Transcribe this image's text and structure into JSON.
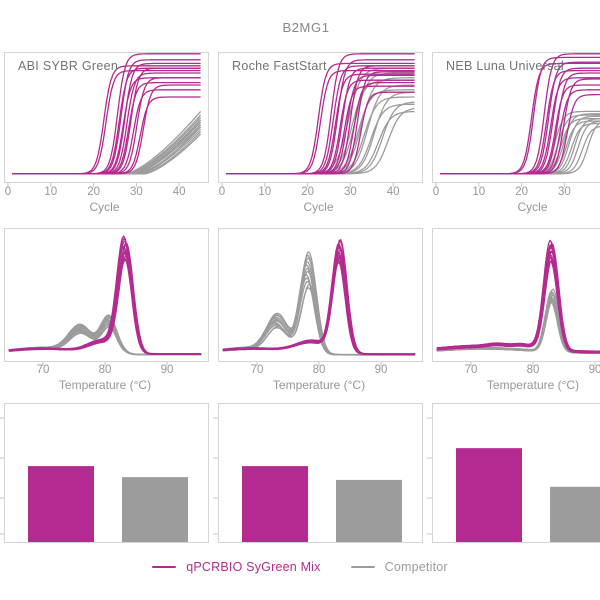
{
  "title": "B2MG1",
  "panel_titles": [
    "ABI SYBR Green",
    "Roche FastStart",
    "NEB Luna Universal"
  ],
  "colors": {
    "sygreen_magenta": "#b32b90",
    "competitor_gray": "#9c9c9c",
    "frame_gray": "#d4d4d4",
    "tick_mark_gray": "#c6c6c6",
    "text_gray": "#979797",
    "title_gray": "#878787"
  },
  "legend": {
    "items": [
      {
        "label": "qPCRBIO SyGreen Mix",
        "color": "#b32b90"
      },
      {
        "label": "Competitor",
        "color": "#9c9c9c"
      }
    ]
  },
  "chart_data": {
    "amplification": {
      "type": "line",
      "xlabel": "Cycle",
      "x_ticks": [
        0,
        10,
        20,
        30,
        40
      ],
      "xlim": [
        1,
        45
      ],
      "ylim": [
        0,
        1
      ],
      "grid": false,
      "panels": [
        {
          "instrument": "ABI SYBR Green",
          "sygreen_sigmoids_ct_plateau": [
            [
              22.4,
              0.9
            ],
            [
              22.9,
              0.86
            ],
            [
              25.6,
              1.0
            ],
            [
              26.0,
              0.88
            ],
            [
              26.4,
              0.95
            ],
            [
              26.9,
              0.8
            ],
            [
              27.3,
              0.92
            ],
            [
              27.8,
              0.84
            ],
            [
              28.2,
              0.76
            ],
            [
              28.7,
              0.88
            ],
            [
              29.3,
              0.7
            ],
            [
              30.1,
              0.8
            ],
            [
              30.9,
              0.64
            ],
            [
              31.6,
              0.74
            ]
          ],
          "competitor_ramps_start_endvalue": [
            [
              27.5,
              0.52
            ],
            [
              28.0,
              0.49
            ],
            [
              28.3,
              0.47
            ],
            [
              28.8,
              0.45
            ],
            [
              29.2,
              0.43
            ],
            [
              29.6,
              0.41
            ],
            [
              30.0,
              0.45
            ],
            [
              30.4,
              0.39
            ],
            [
              30.8,
              0.37
            ],
            [
              31.2,
              0.41
            ],
            [
              31.6,
              0.35
            ],
            [
              32.0,
              0.33
            ]
          ]
        },
        {
          "instrument": "Roche FastStart",
          "sygreen_sigmoids_ct_plateau": [
            [
              22.5,
              0.92
            ],
            [
              23.0,
              0.86
            ],
            [
              25.5,
              1.0
            ],
            [
              26.0,
              0.9
            ],
            [
              26.5,
              0.83
            ],
            [
              27.0,
              0.95
            ],
            [
              27.6,
              0.78
            ],
            [
              28.1,
              0.88
            ],
            [
              28.6,
              0.73
            ],
            [
              29.2,
              0.82
            ],
            [
              30.0,
              0.9
            ],
            [
              30.8,
              0.76
            ],
            [
              31.6,
              0.85
            ],
            [
              32.4,
              0.68
            ]
          ],
          "competitor_sigmoids_ct_plateau": [
            [
              29.5,
              0.88
            ],
            [
              30.3,
              0.78
            ],
            [
              31.0,
              0.84
            ],
            [
              31.8,
              0.7
            ],
            [
              32.5,
              0.8
            ],
            [
              33.2,
              0.64
            ],
            [
              34.0,
              0.74
            ],
            [
              34.8,
              0.58
            ],
            [
              35.6,
              0.68
            ],
            [
              36.5,
              0.52
            ],
            [
              37.5,
              0.6
            ],
            [
              38.8,
              0.55
            ]
          ],
          "competitor_k": 0.7
        },
        {
          "instrument": "NEB Luna Universal",
          "sygreen_sigmoids_ct_plateau": [
            [
              22.3,
              0.92
            ],
            [
              22.8,
              0.97
            ],
            [
              25.3,
              1.0
            ],
            [
              25.8,
              0.86
            ],
            [
              26.3,
              0.93
            ],
            [
              26.8,
              0.8
            ],
            [
              27.3,
              0.88
            ],
            [
              27.9,
              0.74
            ],
            [
              28.4,
              0.84
            ],
            [
              29.0,
              0.7
            ],
            [
              29.8,
              0.79
            ],
            [
              30.6,
              0.66
            ]
          ],
          "competitor_sigmoids_ct_plateau": [
            [
              27.8,
              0.52
            ],
            [
              28.5,
              0.49
            ],
            [
              29.2,
              0.46
            ],
            [
              29.8,
              0.5
            ],
            [
              30.4,
              0.44
            ],
            [
              31.0,
              0.48
            ],
            [
              31.6,
              0.42
            ],
            [
              32.4,
              0.46
            ],
            [
              33.2,
              0.44
            ],
            [
              34.2,
              0.4
            ],
            [
              35.5,
              0.45
            ]
          ],
          "competitor_k": 1.0
        }
      ]
    },
    "melt": {
      "type": "line",
      "xlabel": "Temperature (°C)",
      "x_ticks": [
        70,
        80,
        90
      ],
      "xlim": [
        64.5,
        95.5
      ],
      "ylim": [
        0,
        1
      ],
      "grid": false,
      "panels": [
        {
          "instrument": "ABI SYBR Green",
          "sygreen": {
            "baseline": 0.015,
            "n": 12,
            "spread": 0.2,
            "peaks_mu_sigma_amp": [
              [
                83.2,
                1.15,
                0.92
              ],
              [
                79.6,
                2.2,
                0.1
              ],
              [
                70.0,
                6.0,
                0.05
              ]
            ]
          },
          "competitor": {
            "baseline": 0.01,
            "n": 12,
            "spread": 0.3,
            "peaks_mu_sigma_amp": [
              [
                80.6,
                1.3,
                0.3
              ],
              [
                76.0,
                1.8,
                0.21
              ],
              [
                70.0,
                6.0,
                0.06
              ]
            ]
          }
        },
        {
          "instrument": "Roche FastStart",
          "sygreen": {
            "baseline": 0.015,
            "n": 12,
            "spread": 0.2,
            "peaks_mu_sigma_amp": [
              [
                83.2,
                1.1,
                0.9
              ],
              [
                78.8,
                2.6,
                0.1
              ],
              [
                69.0,
                6.0,
                0.05
              ]
            ]
          },
          "competitor": {
            "baseline": 0.01,
            "n": 12,
            "spread": 0.35,
            "peaks_mu_sigma_amp": [
              [
                78.2,
                1.25,
                0.82
              ],
              [
                73.2,
                1.7,
                0.3
              ],
              [
                68.0,
                5.0,
                0.06
              ]
            ]
          }
        },
        {
          "instrument": "NEB Luna Universal",
          "sygreen": {
            "baseline": 0.03,
            "n": 12,
            "spread": 0.18,
            "peaks_mu_sigma_amp": [
              [
                83.0,
                1.1,
                0.88
              ],
              [
                72.0,
                7.0,
                0.05
              ],
              [
                78.5,
                1.5,
                0.03
              ],
              [
                74.5,
                1.5,
                0.02
              ]
            ]
          },
          "competitor": {
            "baseline": 0.025,
            "n": 10,
            "spread": 0.2,
            "peaks_mu_sigma_amp": [
              [
                83.0,
                1.0,
                0.5
              ],
              [
                72.0,
                7.0,
                0.04
              ]
            ]
          }
        }
      ]
    },
    "bars": {
      "type": "bar",
      "categories": [
        "qPCRBIO SyGreen Mix",
        "Competitor"
      ],
      "y_axis_labels_visible": false,
      "panels": [
        {
          "instrument": "ABI SYBR Green",
          "values_relative_height": [
            0.55,
            0.47
          ]
        },
        {
          "instrument": "Roche FastStart",
          "values_relative_height": [
            0.55,
            0.45
          ]
        },
        {
          "instrument": "NEB Luna Universal",
          "values_relative_height": [
            0.68,
            0.4
          ]
        }
      ]
    }
  }
}
